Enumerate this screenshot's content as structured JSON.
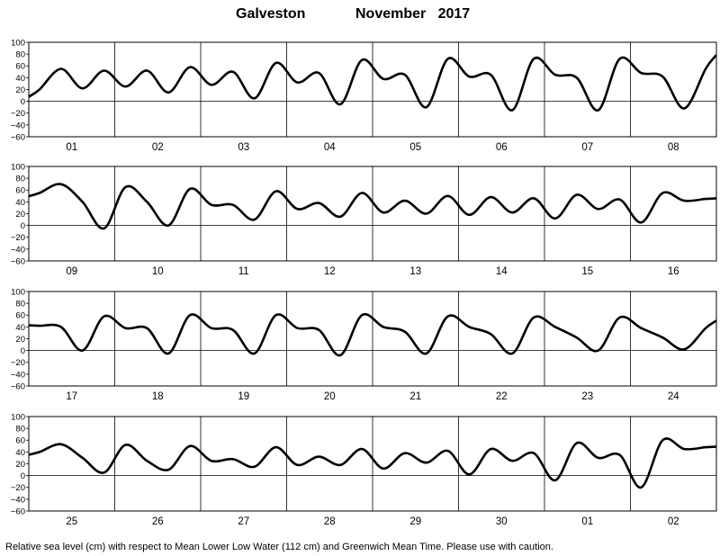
{
  "header": {
    "location": "Galveston",
    "month_year": "November   2017"
  },
  "footer": {
    "note": "Relative sea level (cm) with respect to Mean Lower Low Water (112 cm) and Greenwich Mean Time. Please use with caution."
  },
  "chart_data": {
    "type": "line",
    "title": "Galveston   November 2017",
    "xlabel": "",
    "ylabel": "",
    "ylim": [
      -60,
      100
    ],
    "yticks": [
      100,
      80,
      60,
      40,
      20,
      0,
      -20,
      -40,
      -60
    ],
    "grid": "vertical day lines and horizontal line at 0",
    "units": "cm",
    "panels": [
      {
        "days": [
          "01",
          "02",
          "03",
          "04",
          "05",
          "06",
          "07",
          "08"
        ],
        "series": [
          {
            "name": "",
            "points_per_day": 4,
            "values": [
              20,
              55,
              22,
              52,
              25,
              52,
              15,
              58,
              28,
              50,
              5,
              65,
              32,
              48,
              -5,
              70,
              38,
              45,
              -10,
              72,
              42,
              45,
              -15,
              72,
              45,
              40,
              -15,
              72,
              48,
              42,
              -12,
              55
            ]
          }
        ]
      },
      {
        "days": [
          "09",
          "10",
          "11",
          "12",
          "13",
          "14",
          "15",
          "16"
        ],
        "series": [
          {
            "name": "",
            "points_per_day": 4,
            "values": [
              55,
              70,
              40,
              -5,
              65,
              40,
              0,
              62,
              35,
              35,
              10,
              58,
              28,
              38,
              15,
              55,
              22,
              42,
              20,
              50,
              18,
              48,
              22,
              46,
              12,
              52,
              28,
              44,
              5,
              55,
              42,
              45
            ]
          }
        ]
      },
      {
        "days": [
          "17",
          "18",
          "19",
          "20",
          "21",
          "22",
          "23",
          "24"
        ],
        "series": [
          {
            "name": "",
            "points_per_day": 4,
            "values": [
              42,
              40,
              0,
              58,
              38,
              38,
              -5,
              60,
              38,
              35,
              -5,
              60,
              38,
              35,
              -8,
              60,
              40,
              32,
              -5,
              58,
              40,
              28,
              -5,
              56,
              40,
              22,
              0,
              56,
              38,
              22,
              2,
              38
            ]
          }
        ]
      },
      {
        "days": [
          "25",
          "26",
          "27",
          "28",
          "29",
          "30",
          "01",
          "02"
        ],
        "series": [
          {
            "name": "",
            "points_per_day": 4,
            "values": [
              40,
              53,
              30,
              5,
              52,
              25,
              10,
              50,
              25,
              28,
              15,
              48,
              18,
              32,
              18,
              45,
              12,
              38,
              22,
              42,
              2,
              45,
              25,
              38,
              -8,
              55,
              30,
              35,
              -20,
              60,
              45,
              48
            ]
          }
        ]
      }
    ]
  }
}
